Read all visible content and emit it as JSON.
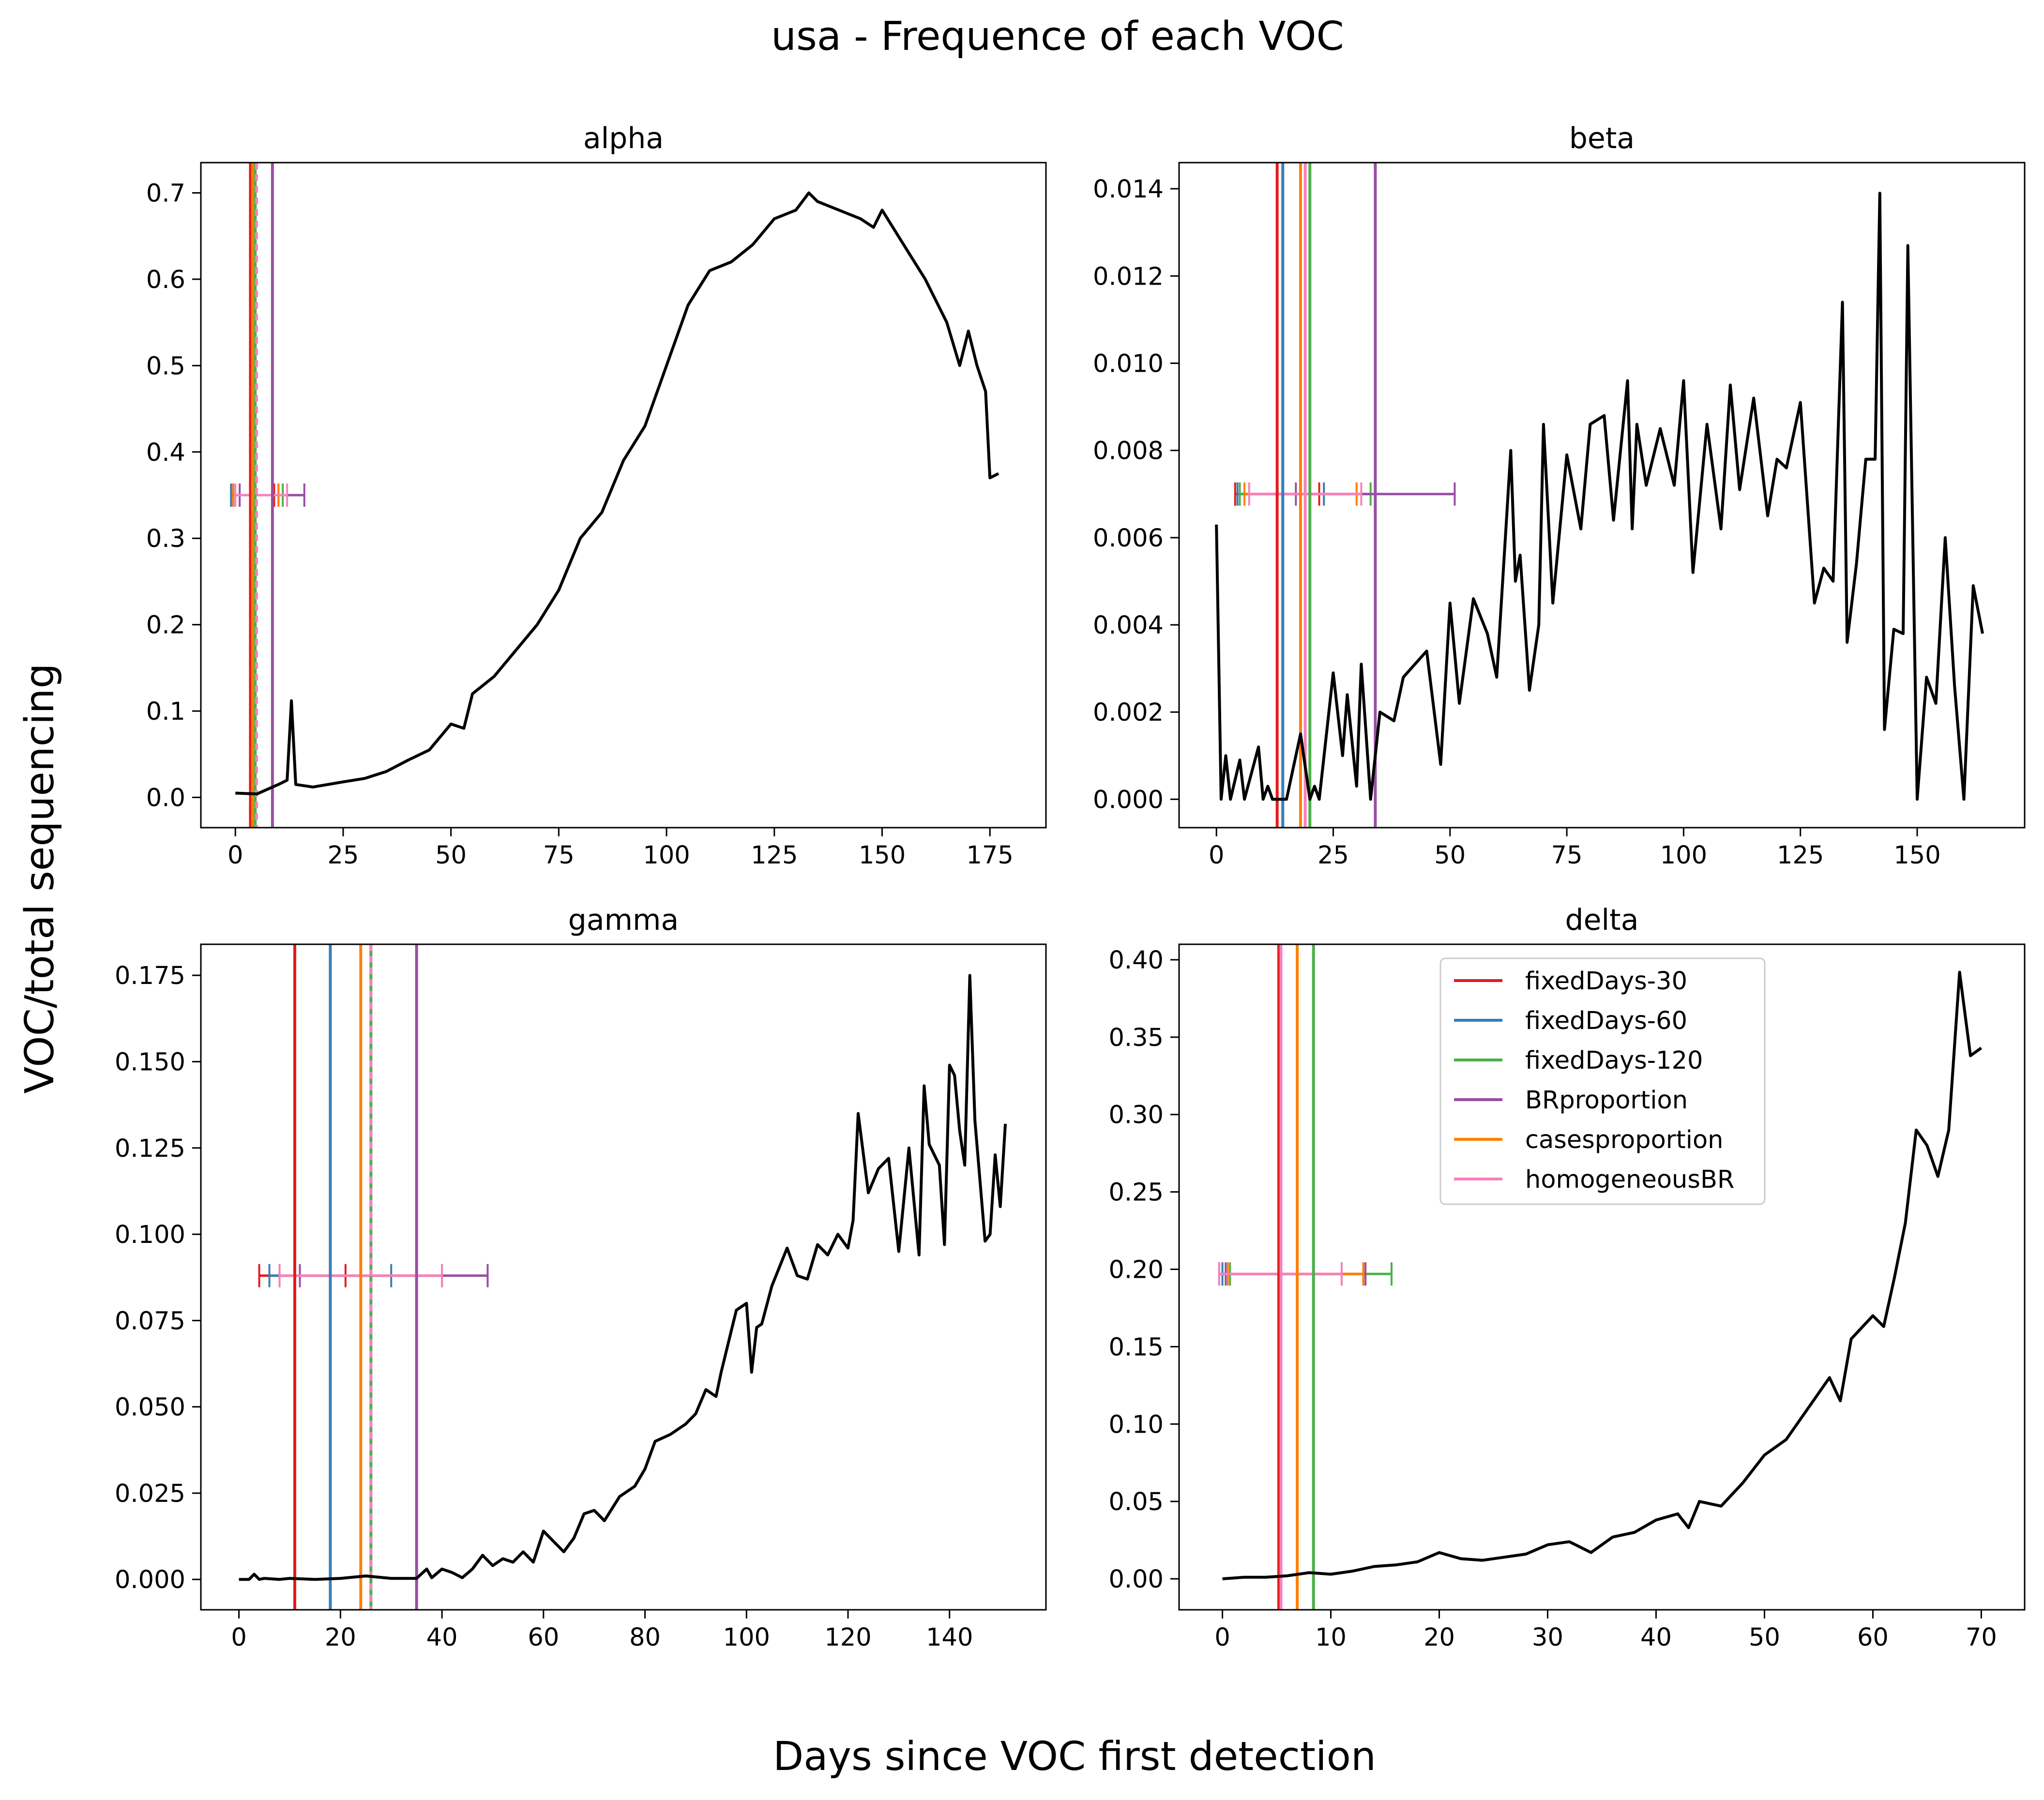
{
  "figure": {
    "title": "usa - Frequence of each VOC",
    "xlabel": "Days since VOC first detection",
    "ylabel": "VOC/total sequencing"
  },
  "legend": {
    "placement": "upper-center (delta panel)",
    "entries": [
      {
        "label": "fixedDays-30",
        "color": "#e41a1c"
      },
      {
        "label": "fixedDays-60",
        "color": "#377eb8"
      },
      {
        "label": "fixedDays-120",
        "color": "#4daf4a"
      },
      {
        "label": "BRproportion",
        "color": "#984ea3"
      },
      {
        "label": "casesproportion",
        "color": "#ff7f00"
      },
      {
        "label": "homogeneousBR",
        "color": "#f781bf"
      }
    ]
  },
  "chart_data": [
    {
      "type": "line",
      "title": "alpha",
      "xlim": [
        -8,
        188
      ],
      "ylim": [
        -0.035,
        0.735
      ],
      "xticks": [
        0,
        25,
        50,
        75,
        100,
        125,
        150,
        175
      ],
      "xtick_labels": [
        "0",
        "25",
        "50",
        "75",
        "100",
        "125",
        "150",
        "175"
      ],
      "yticks": [
        0.0,
        0.1,
        0.2,
        0.3,
        0.4,
        0.5,
        0.6,
        0.7
      ],
      "ytick_labels": [
        "0.0",
        "0.1",
        "0.2",
        "0.3",
        "0.4",
        "0.5",
        "0.6",
        "0.7"
      ],
      "series": [
        {
          "color": "#000000",
          "x": [
            0,
            5,
            10,
            12,
            13,
            14,
            18,
            25,
            30,
            35,
            40,
            45,
            50,
            53,
            55,
            60,
            65,
            70,
            75,
            80,
            85,
            90,
            95,
            100,
            105,
            110,
            115,
            120,
            125,
            130,
            133,
            135,
            140,
            145,
            148,
            150,
            155,
            160,
            165,
            168,
            170,
            172,
            174,
            175,
            177
          ],
          "y": [
            0.005,
            0.004,
            0.015,
            0.02,
            0.112,
            0.015,
            0.012,
            0.018,
            0.022,
            0.03,
            0.043,
            0.055,
            0.085,
            0.08,
            0.12,
            0.14,
            0.17,
            0.2,
            0.24,
            0.3,
            0.33,
            0.39,
            0.43,
            0.5,
            0.57,
            0.61,
            0.62,
            0.64,
            0.67,
            0.68,
            0.7,
            0.69,
            0.68,
            0.67,
            0.66,
            0.68,
            0.64,
            0.6,
            0.55,
            0.5,
            0.54,
            0.5,
            0.47,
            0.37,
            0.375
          ]
        }
      ],
      "vlines": [
        {
          "x": 3.5,
          "color": "#e41a1c"
        },
        {
          "x": 4.2,
          "color": "#377eb8"
        },
        {
          "x": 4.6,
          "color": "#4daf4a"
        },
        {
          "x": 8.6,
          "color": "#984ea3"
        },
        {
          "x": 4.0,
          "color": "#ff7f00"
        },
        {
          "x": 4.9,
          "color": "#f781bf",
          "dash": true
        }
      ],
      "intervals": {
        "y": 0.35,
        "items": [
          {
            "lo": -1,
            "hi": 9,
            "color": "#e41a1c"
          },
          {
            "lo": -1,
            "hi": 10,
            "color": "#377eb8"
          },
          {
            "lo": -0.5,
            "hi": 11,
            "color": "#4daf4a"
          },
          {
            "lo": 1,
            "hi": 16,
            "color": "#984ea3"
          },
          {
            "lo": -0.5,
            "hi": 10,
            "color": "#ff7f00"
          },
          {
            "lo": 0,
            "hi": 12,
            "color": "#f781bf"
          }
        ]
      }
    },
    {
      "type": "line",
      "title": "beta",
      "xlim": [
        -8,
        173
      ],
      "ylim": [
        -0.00065,
        0.0146
      ],
      "xticks": [
        0,
        25,
        50,
        75,
        100,
        125,
        150
      ],
      "xtick_labels": [
        "0",
        "25",
        "50",
        "75",
        "100",
        "125",
        "150"
      ],
      "yticks": [
        0.0,
        0.002,
        0.004,
        0.006,
        0.008,
        0.01,
        0.012,
        0.014
      ],
      "ytick_labels": [
        "0.000",
        "0.002",
        "0.004",
        "0.006",
        "0.008",
        "0.010",
        "0.012",
        "0.014"
      ],
      "series": [
        {
          "color": "#000000",
          "x": [
            0,
            1,
            2,
            3,
            5,
            6,
            8,
            9,
            10,
            11,
            12,
            15,
            18,
            20,
            21,
            22,
            25,
            27,
            28,
            30,
            31,
            33,
            35,
            38,
            40,
            45,
            48,
            50,
            52,
            55,
            58,
            60,
            63,
            64,
            65,
            67,
            69,
            70,
            72,
            75,
            78,
            80,
            83,
            85,
            88,
            89,
            90,
            92,
            95,
            98,
            100,
            102,
            105,
            108,
            110,
            112,
            115,
            118,
            120,
            122,
            125,
            128,
            130,
            132,
            134,
            135,
            137,
            139,
            141,
            142,
            143,
            145,
            147,
            148,
            150,
            152,
            154,
            156,
            158,
            160,
            162,
            164
          ],
          "y": [
            0.0063,
            0.0,
            0.001,
            0.0,
            0.0009,
            0.0,
            0.0008,
            0.0012,
            0.0,
            0.0003,
            0.0,
            0.0,
            0.0015,
            0.0,
            0.0003,
            0.0,
            0.0029,
            0.001,
            0.0024,
            0.0003,
            0.0031,
            0.0,
            0.002,
            0.0018,
            0.0028,
            0.0034,
            0.0008,
            0.0045,
            0.0022,
            0.0046,
            0.0038,
            0.0028,
            0.008,
            0.005,
            0.0056,
            0.0025,
            0.004,
            0.0086,
            0.0045,
            0.0079,
            0.0062,
            0.0086,
            0.0088,
            0.0064,
            0.0096,
            0.0062,
            0.0086,
            0.0072,
            0.0085,
            0.0072,
            0.0096,
            0.0052,
            0.0086,
            0.0062,
            0.0095,
            0.0071,
            0.0092,
            0.0065,
            0.0078,
            0.0076,
            0.0091,
            0.0045,
            0.0053,
            0.005,
            0.0114,
            0.0036,
            0.0054,
            0.0078,
            0.0078,
            0.0139,
            0.0016,
            0.0039,
            0.0038,
            0.0127,
            0.0,
            0.0028,
            0.0022,
            0.006,
            0.0026,
            0.0,
            0.0049,
            0.0038
          ]
        }
      ],
      "vlines": [
        {
          "x": 13,
          "color": "#e41a1c"
        },
        {
          "x": 14.2,
          "color": "#377eb8"
        },
        {
          "x": 20,
          "color": "#4daf4a"
        },
        {
          "x": 34,
          "color": "#984ea3"
        },
        {
          "x": 18,
          "color": "#ff7f00"
        },
        {
          "x": 19,
          "color": "#f781bf"
        }
      ],
      "intervals": {
        "y": 0.007,
        "items": [
          {
            "lo": 4,
            "hi": 22,
            "color": "#e41a1c"
          },
          {
            "lo": 4.5,
            "hi": 23,
            "color": "#377eb8"
          },
          {
            "lo": 5,
            "hi": 33,
            "color": "#4daf4a"
          },
          {
            "lo": 17,
            "hi": 51,
            "color": "#984ea3"
          },
          {
            "lo": 6,
            "hi": 30,
            "color": "#ff7f00"
          },
          {
            "lo": 7,
            "hi": 31,
            "color": "#f781bf"
          }
        ]
      }
    },
    {
      "type": "line",
      "title": "gamma",
      "xlim": [
        -7.5,
        159
      ],
      "ylim": [
        -0.0088,
        0.184
      ],
      "xticks": [
        0,
        20,
        40,
        60,
        80,
        100,
        120,
        140
      ],
      "xtick_labels": [
        "0",
        "20",
        "40",
        "60",
        "80",
        "100",
        "120",
        "140"
      ],
      "yticks": [
        0.0,
        0.025,
        0.05,
        0.075,
        0.1,
        0.125,
        0.15,
        0.175
      ],
      "ytick_labels": [
        "0.000",
        "0.025",
        "0.050",
        "0.075",
        "0.100",
        "0.125",
        "0.150",
        "0.175"
      ],
      "series": [
        {
          "color": "#000000",
          "x": [
            0,
            2,
            3,
            4,
            5,
            8,
            10,
            15,
            20,
            25,
            30,
            35,
            37,
            38,
            40,
            42,
            44,
            46,
            48,
            50,
            52,
            54,
            56,
            58,
            60,
            62,
            64,
            66,
            68,
            70,
            72,
            75,
            78,
            80,
            82,
            85,
            88,
            90,
            92,
            94,
            95,
            97,
            98,
            100,
            101,
            102,
            103,
            105,
            108,
            110,
            112,
            114,
            116,
            118,
            120,
            121,
            122,
            124,
            126,
            128,
            130,
            132,
            134,
            135,
            136,
            138,
            139,
            140,
            141,
            142,
            143,
            144,
            145,
            147,
            148,
            149,
            150,
            151
          ],
          "y": [
            0.0,
            0.0,
            0.0015,
            0.0,
            0.0003,
            0.0,
            0.0003,
            0.0,
            0.0003,
            0.001,
            0.0003,
            0.0003,
            0.003,
            0.0005,
            0.003,
            0.002,
            0.0005,
            0.003,
            0.007,
            0.004,
            0.006,
            0.005,
            0.008,
            0.005,
            0.014,
            0.011,
            0.008,
            0.012,
            0.019,
            0.02,
            0.017,
            0.024,
            0.027,
            0.032,
            0.04,
            0.042,
            0.045,
            0.048,
            0.055,
            0.053,
            0.06,
            0.072,
            0.078,
            0.08,
            0.06,
            0.073,
            0.074,
            0.085,
            0.096,
            0.088,
            0.087,
            0.097,
            0.094,
            0.1,
            0.096,
            0.104,
            0.135,
            0.112,
            0.119,
            0.122,
            0.095,
            0.125,
            0.094,
            0.143,
            0.126,
            0.12,
            0.097,
            0.149,
            0.146,
            0.13,
            0.12,
            0.175,
            0.133,
            0.098,
            0.1,
            0.123,
            0.108,
            0.132
          ]
        }
      ],
      "vlines": [
        {
          "x": 11,
          "color": "#e41a1c"
        },
        {
          "x": 18,
          "color": "#377eb8"
        },
        {
          "x": 26,
          "color": "#4daf4a"
        },
        {
          "x": 35,
          "color": "#984ea3"
        },
        {
          "x": 24,
          "color": "#ff7f00"
        },
        {
          "x": 26,
          "color": "#f781bf",
          "dash": true
        }
      ],
      "intervals": {
        "y": 0.088,
        "items": [
          {
            "lo": 4,
            "hi": 21,
            "color": "#e41a1c"
          },
          {
            "lo": 6,
            "hi": 30,
            "color": "#377eb8"
          },
          {
            "lo": 8,
            "hi": 40,
            "color": "#4daf4a"
          },
          {
            "lo": 12,
            "hi": 49,
            "color": "#984ea3"
          },
          {
            "lo": 8,
            "hi": 40,
            "color": "#ff7f00"
          },
          {
            "lo": 8,
            "hi": 40,
            "color": "#f781bf"
          }
        ]
      }
    },
    {
      "type": "line",
      "title": "delta",
      "xlim": [
        -4,
        74
      ],
      "ylim": [
        -0.02,
        0.41
      ],
      "xticks": [
        0,
        10,
        20,
        30,
        40,
        50,
        60,
        70
      ],
      "xtick_labels": [
        "0",
        "10",
        "20",
        "30",
        "40",
        "50",
        "60",
        "70"
      ],
      "yticks": [
        0.0,
        0.05,
        0.1,
        0.15,
        0.2,
        0.25,
        0.3,
        0.35,
        0.4
      ],
      "ytick_labels": [
        "0.00",
        "0.05",
        "0.10",
        "0.15",
        "0.20",
        "0.25",
        "0.30",
        "0.35",
        "0.40"
      ],
      "series": [
        {
          "color": "#000000",
          "x": [
            0,
            2,
            4,
            6,
            8,
            10,
            12,
            14,
            16,
            18,
            20,
            22,
            24,
            26,
            28,
            30,
            32,
            34,
            36,
            38,
            40,
            42,
            43,
            44,
            46,
            48,
            50,
            52,
            54,
            56,
            57,
            58,
            60,
            61,
            62,
            63,
            64,
            65,
            66,
            67,
            68,
            69,
            70
          ],
          "y": [
            0.0,
            0.001,
            0.001,
            0.002,
            0.004,
            0.003,
            0.005,
            0.008,
            0.009,
            0.011,
            0.017,
            0.013,
            0.012,
            0.014,
            0.016,
            0.022,
            0.024,
            0.017,
            0.027,
            0.03,
            0.038,
            0.042,
            0.033,
            0.05,
            0.047,
            0.062,
            0.08,
            0.09,
            0.11,
            0.13,
            0.115,
            0.155,
            0.17,
            0.163,
            0.195,
            0.23,
            0.29,
            0.28,
            0.26,
            0.29,
            0.392,
            0.338,
            0.343
          ]
        }
      ],
      "vlines": [
        {
          "x": 5.2,
          "color": "#e41a1c"
        },
        {
          "x": 8.4,
          "color": "#4daf4a"
        },
        {
          "x": 6.9,
          "color": "#ff7f00"
        },
        {
          "x": 5.4,
          "color": "#f781bf"
        }
      ],
      "intervals": {
        "y": 0.197,
        "items": [
          {
            "lo": -0.3,
            "hi": 13,
            "color": "#e41a1c"
          },
          {
            "lo": 0,
            "hi": 11,
            "color": "#377eb8"
          },
          {
            "lo": 0.7,
            "hi": 15.6,
            "color": "#4daf4a"
          },
          {
            "lo": 0.3,
            "hi": 13.2,
            "color": "#984ea3"
          },
          {
            "lo": 0.5,
            "hi": 13,
            "color": "#ff7f00"
          },
          {
            "lo": -0.3,
            "hi": 11,
            "color": "#f781bf"
          }
        ]
      }
    }
  ]
}
